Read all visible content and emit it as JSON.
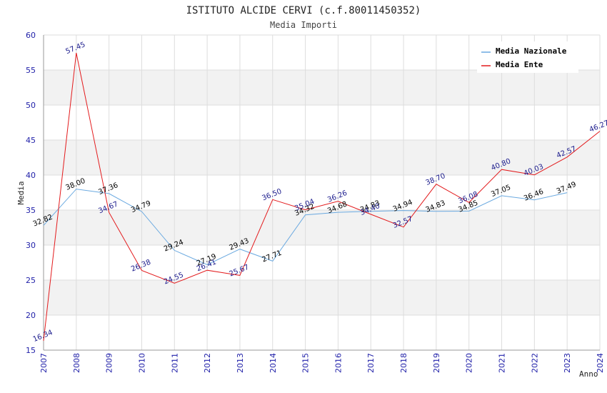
{
  "chart_data": {
    "type": "line",
    "title": "ISTITUTO ALCIDE CERVI (c.f.80011450352)",
    "subtitle": "Media Importi",
    "xlabel": "Anno",
    "ylabel": "Media",
    "ylim": [
      15,
      60
    ],
    "yticks": [
      15,
      20,
      25,
      30,
      35,
      40,
      45,
      50,
      55,
      60
    ],
    "categories": [
      "2007",
      "2008",
      "2009",
      "2010",
      "2011",
      "2012",
      "2013",
      "2014",
      "2015",
      "2016",
      "2017",
      "2018",
      "2019",
      "2020",
      "2021",
      "2022",
      "2023",
      "2024"
    ],
    "series": [
      {
        "name": "Media Nazionale",
        "color": "#6aa9e0",
        "label_color": "#000000",
        "values": [
          32.82,
          38.0,
          37.36,
          34.79,
          29.24,
          27.19,
          29.43,
          27.71,
          34.32,
          34.68,
          34.83,
          34.94,
          34.83,
          34.85,
          37.05,
          36.46,
          37.49,
          null
        ],
        "labels": [
          "32.82",
          "38.00",
          "37.36",
          "34.79",
          "29.24",
          "27.19",
          "29.43",
          "27.71",
          "34.32",
          "34.68",
          "34.83",
          "34.94",
          "34.83",
          "34.85",
          "37.05",
          "36.46",
          "37.49",
          ""
        ]
      },
      {
        "name": "Media Ente",
        "color": "#e31a1c",
        "label_color": "#1a1a8c",
        "values": [
          16.34,
          57.45,
          34.67,
          26.38,
          24.55,
          26.41,
          25.67,
          36.5,
          35.04,
          36.26,
          34.4,
          32.57,
          38.7,
          36.08,
          40.8,
          40.03,
          42.57,
          46.27
        ],
        "labels": [
          "16.34",
          "57.45",
          "34.67",
          "26.38",
          "24.55",
          "26.41",
          "25.67",
          "36.50",
          "35.04",
          "36.26",
          "34.40",
          "32.57",
          "38.70",
          "36.08",
          "40.80",
          "40.03",
          "42.57",
          "46.27"
        ]
      }
    ],
    "grid": true,
    "legend": "top-right"
  },
  "colors": {
    "band": "#f2f2f2",
    "gridline": "#dddddd",
    "axis": "#999999",
    "tick_text": "#1f1fa8"
  }
}
